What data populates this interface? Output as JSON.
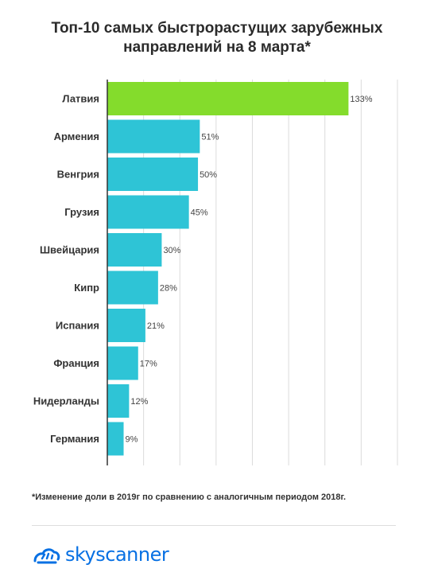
{
  "title_lines": [
    "Топ-10 самых быстрорастущих зарубежных",
    "направлений на 8 марта*"
  ],
  "footnote": "*Изменение доли в 2019г по сравнению с аналогичным периодом 2018г.",
  "brand": {
    "name": "skyscanner",
    "icon": "skyscanner-cloud-icon",
    "color": "#0770e3"
  },
  "chart_data": {
    "type": "bar",
    "orientation": "horizontal",
    "categories": [
      "Латвия",
      "Армения",
      "Венгрия",
      "Грузия",
      "Швейцария",
      "Кипр",
      "Испания",
      "Франция",
      "Нидерланды",
      "Германия"
    ],
    "values": [
      133,
      51,
      50,
      45,
      30,
      28,
      21,
      17,
      12,
      9
    ],
    "labels": [
      "133%",
      "51%",
      "50%",
      "45%",
      "30%",
      "28%",
      "21%",
      "17%",
      "12%",
      "9%"
    ],
    "value_unit": "%",
    "xlim": [
      0,
      160
    ],
    "grid": true,
    "colors": {
      "highlight": "#84dc2c",
      "default": "#2ec4d6",
      "grid": "#dcdcdc"
    },
    "highlight_index": 0
  }
}
